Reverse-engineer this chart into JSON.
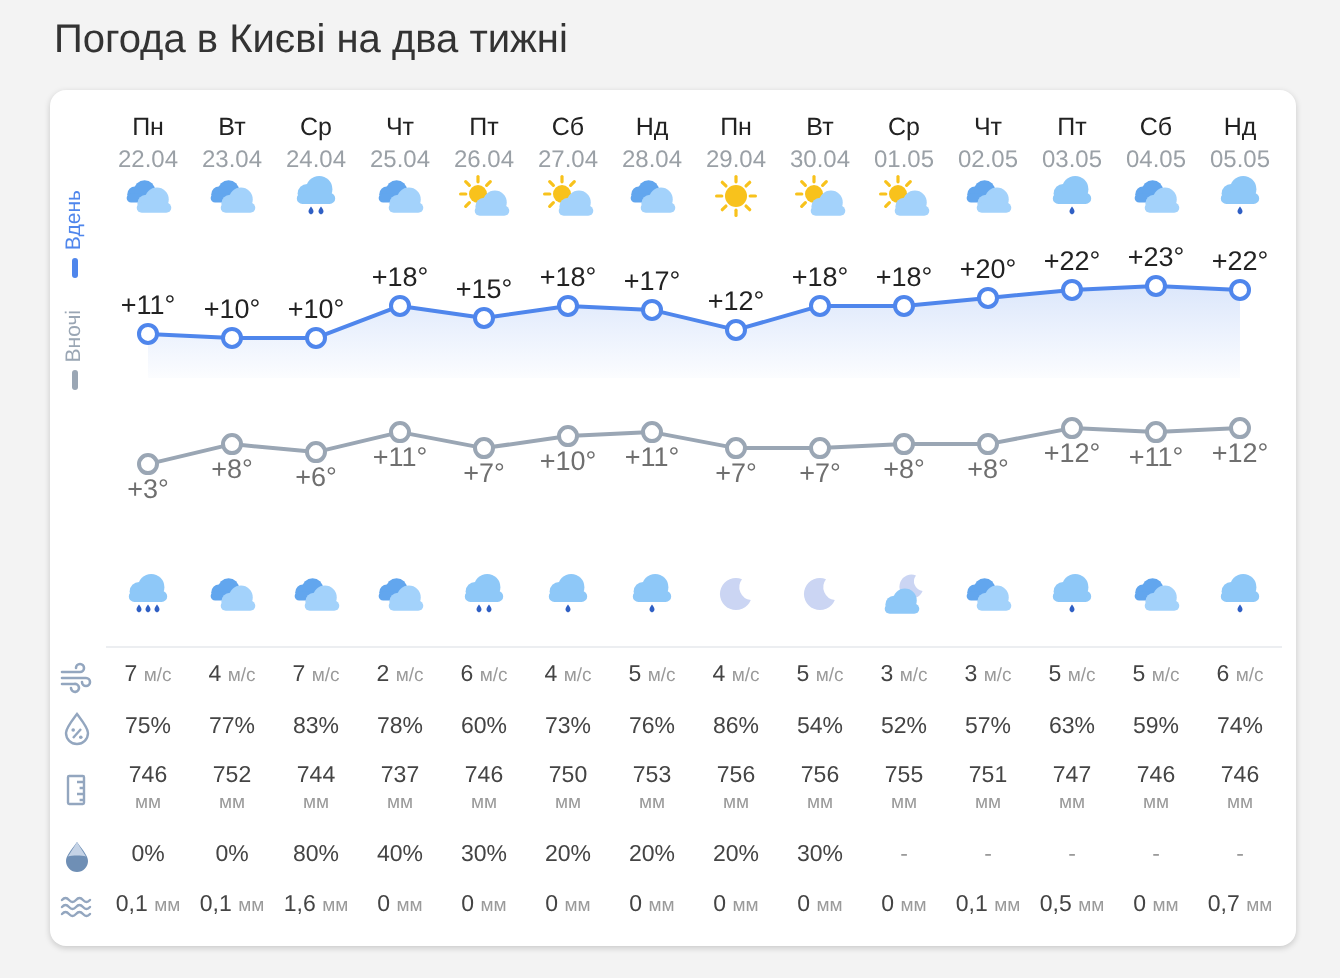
{
  "chart_data": [
    {
      "type": "line",
      "title": "Погода в Києві на два тижні",
      "categories": [
        "Пн\n22.04",
        "Вт\n23.04",
        "Ср\n24.04",
        "Чт\n25.04",
        "Пт\n26.04",
        "Сб\n27.04",
        "Нд\n28.04",
        "Пн\n29.04",
        "Вт\n30.04",
        "Ср\n01.05",
        "Чт\n02.05",
        "Пт\n03.05",
        "Сб\n04.05",
        "Нд\n05.05"
      ],
      "series": [
        {
          "name": "Вдень",
          "type": "area",
          "color": "#4f86ec",
          "values": [
            11,
            10,
            10,
            18,
            15,
            18,
            17,
            12,
            18,
            18,
            20,
            22,
            23,
            22
          ],
          "value_labels": [
            "+11°",
            "+10°",
            "+10°",
            "+18°",
            "+15°",
            "+18°",
            "+17°",
            "+12°",
            "+18°",
            "+18°",
            "+20°",
            "+22°",
            "+23°",
            "+22°"
          ]
        }
      ],
      "tick_labels": "x",
      "legend": "left",
      "marker": "circle",
      "line_style": "solid"
    },
    {
      "type": "line",
      "categories": [
        null,
        null,
        null,
        null,
        null,
        null,
        null,
        null,
        null,
        null,
        null,
        null,
        null,
        null
      ],
      "series": [
        {
          "name": "Вночі",
          "type": "line",
          "color": "#9aa6b4",
          "values": [
            3,
            8,
            6,
            11,
            7,
            10,
            11,
            7,
            7,
            8,
            8,
            12,
            11,
            12
          ],
          "value_labels": [
            "+3°",
            "+8°",
            "+6°",
            "+11°",
            "+7°",
            "+10°",
            "+11°",
            "+7°",
            "+7°",
            "+8°",
            "+8°",
            "+12°",
            "+11°",
            "+12°"
          ]
        }
      ],
      "tick_labels": false,
      "legend": "left",
      "marker": "circle",
      "line_style": "solid"
    },
    {
      "type": "other",
      "cell_labels": [
        [
          "7 м/с",
          "4 м/с",
          "7 м/с",
          "2 м/с",
          "6 м/с",
          "4 м/с",
          "5 м/с",
          "4 м/с",
          "5 м/с",
          "3 м/с",
          "3 м/с",
          "5 м/с",
          "5 м/с",
          "6 м/с"
        ],
        [
          "75%",
          "77%",
          "83%",
          "78%",
          "60%",
          "73%",
          "76%",
          "86%",
          "54%",
          "52%",
          "57%",
          "63%",
          "59%",
          "74%"
        ],
        [
          "746\nмм",
          "752\nмм",
          "744\nмм",
          "737\nмм",
          "746\nмм",
          "750\nмм",
          "753\nмм",
          "756\nмм",
          "756\nмм",
          "755\nмм",
          "751\nмм",
          "747\nмм",
          "746\nмм",
          "746\nмм"
        ],
        [
          "0%",
          "0%",
          "80%",
          "40%",
          "30%",
          "20%",
          "20%",
          "20%",
          "30%",
          "-",
          "-",
          "-",
          "-",
          "-"
        ],
        [
          "0,1 мм",
          "0,1 мм",
          "1,6 мм",
          "0 мм",
          "0 мм",
          "0 мм",
          "0 мм",
          "0 мм",
          "0 мм",
          "0 мм",
          "0,1 мм",
          "0,5 мм",
          "0 мм",
          "0,7 мм"
        ]
      ]
    }
  ]
}
